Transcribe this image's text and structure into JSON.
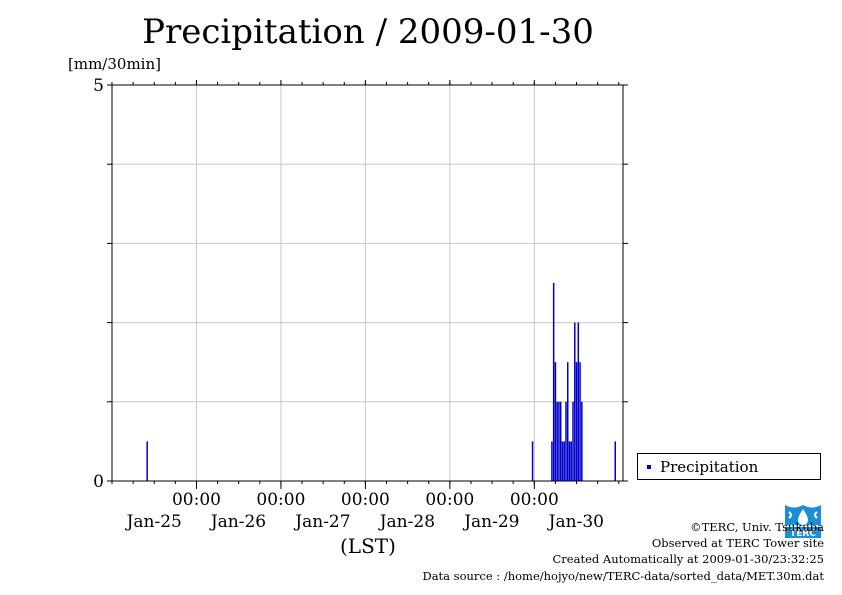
{
  "title": "Precipitation / 2009-01-30",
  "unit_label": "[mm/30min]",
  "x_axis_label": "(LST)",
  "legend": {
    "label": "Precipitation"
  },
  "credits": {
    "copyright": "©TERC, Univ. Tsukuba",
    "observed": "Observed at TERC Tower site",
    "created": "Created Automatically at 2009-01-30/23:32:25",
    "source": "Data source : /home/hojyo/new/TERC-data/sorted_data/MET.30m.dat"
  },
  "logo": {
    "text": "TERC",
    "icon": "terc-logo-icon"
  },
  "colors": {
    "bar": "#0000cc",
    "grid": "#c8c8c8",
    "logo": "#1a8fd6"
  },
  "chart_data": {
    "type": "bar",
    "title": "Precipitation / 2009-01-30",
    "ylabel": "[mm/30min]",
    "xlabel": "(LST)",
    "ylim": [
      0,
      5
    ],
    "y_tick_labels": [
      {
        "value": 0,
        "label": "0"
      },
      {
        "value": 5,
        "label": "5"
      }
    ],
    "y_grid_step": 1,
    "xlim_days": [
      -1,
      5.05
    ],
    "x_tick_labels": [
      {
        "day": 0,
        "time": "00:00",
        "date": "Jan-26"
      },
      {
        "day": 1,
        "time": "00:00",
        "date": "Jan-27"
      },
      {
        "day": 2,
        "time": "00:00",
        "date": "Jan-28"
      },
      {
        "day": 3,
        "time": "00:00",
        "date": "Jan-29"
      },
      {
        "day": 4,
        "time": "00:00",
        "date": "Jan-30"
      }
    ],
    "first_date_label": {
      "day": -0.5,
      "date": "Jan-25"
    },
    "grid": true,
    "legend_position": "right",
    "series": [
      {
        "name": "Precipitation",
        "color": "#0000cc",
        "points": [
          [
            "2009-01-25 10:00",
            0.5
          ],
          [
            "2009-01-29 23:30",
            0.5
          ],
          [
            "2009-01-30 05:00",
            0.5
          ],
          [
            "2009-01-30 05:30",
            2.5
          ],
          [
            "2009-01-30 06:00",
            1.5
          ],
          [
            "2009-01-30 06:30",
            1.0
          ],
          [
            "2009-01-30 07:00",
            1.0
          ],
          [
            "2009-01-30 07:30",
            1.0
          ],
          [
            "2009-01-30 08:00",
            0.5
          ],
          [
            "2009-01-30 08:30",
            0.5
          ],
          [
            "2009-01-30 09:00",
            1.0
          ],
          [
            "2009-01-30 09:30",
            1.5
          ],
          [
            "2009-01-30 10:00",
            0.5
          ],
          [
            "2009-01-30 10:30",
            0.5
          ],
          [
            "2009-01-30 11:00",
            1.0
          ],
          [
            "2009-01-30 11:30",
            2.0
          ],
          [
            "2009-01-30 12:00",
            1.5
          ],
          [
            "2009-01-30 12:30",
            2.0
          ],
          [
            "2009-01-30 13:00",
            1.5
          ],
          [
            "2009-01-30 13:30",
            1.0
          ],
          [
            "2009-01-30 23:00",
            0.5
          ]
        ]
      }
    ]
  }
}
